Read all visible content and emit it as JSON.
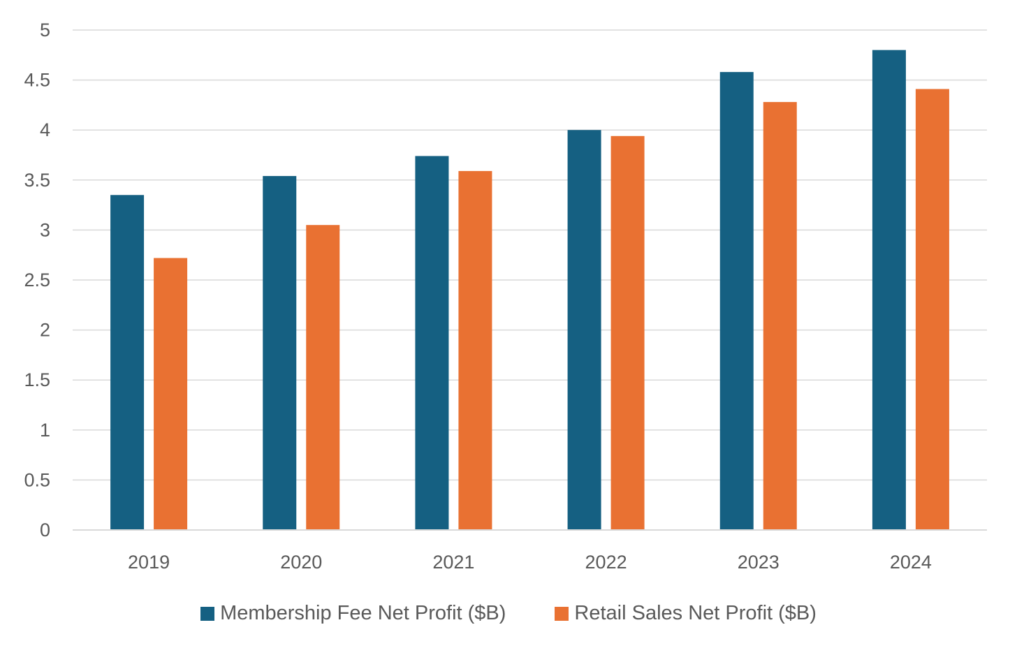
{
  "chart_data": {
    "type": "bar",
    "title": "",
    "xlabel": "",
    "ylabel": "",
    "categories": [
      "2019",
      "2020",
      "2021",
      "2022",
      "2023",
      "2024"
    ],
    "series": [
      {
        "name": "Membership Fee Net Profit ($B)",
        "color": "#156082",
        "values": [
          3.35,
          3.54,
          3.74,
          4.0,
          4.58,
          4.8
        ]
      },
      {
        "name": "Retail Sales Net Profit ($B)",
        "color": "#E97132",
        "values": [
          2.72,
          3.05,
          3.59,
          3.94,
          4.28,
          4.41
        ]
      }
    ],
    "ylim": [
      0,
      5
    ],
    "yticks": [
      0,
      0.5,
      1,
      1.5,
      2,
      2.5,
      3,
      3.5,
      4,
      4.5,
      5
    ],
    "ytick_labels": [
      "0",
      "0.5",
      "1",
      "1.5",
      "2",
      "2.5",
      "3",
      "3.5",
      "4",
      "4.5",
      "5"
    ],
    "grid": true,
    "legend_position": "bottom",
    "gridline_color": "#D9D9D9",
    "axis_text_color": "#595959"
  }
}
